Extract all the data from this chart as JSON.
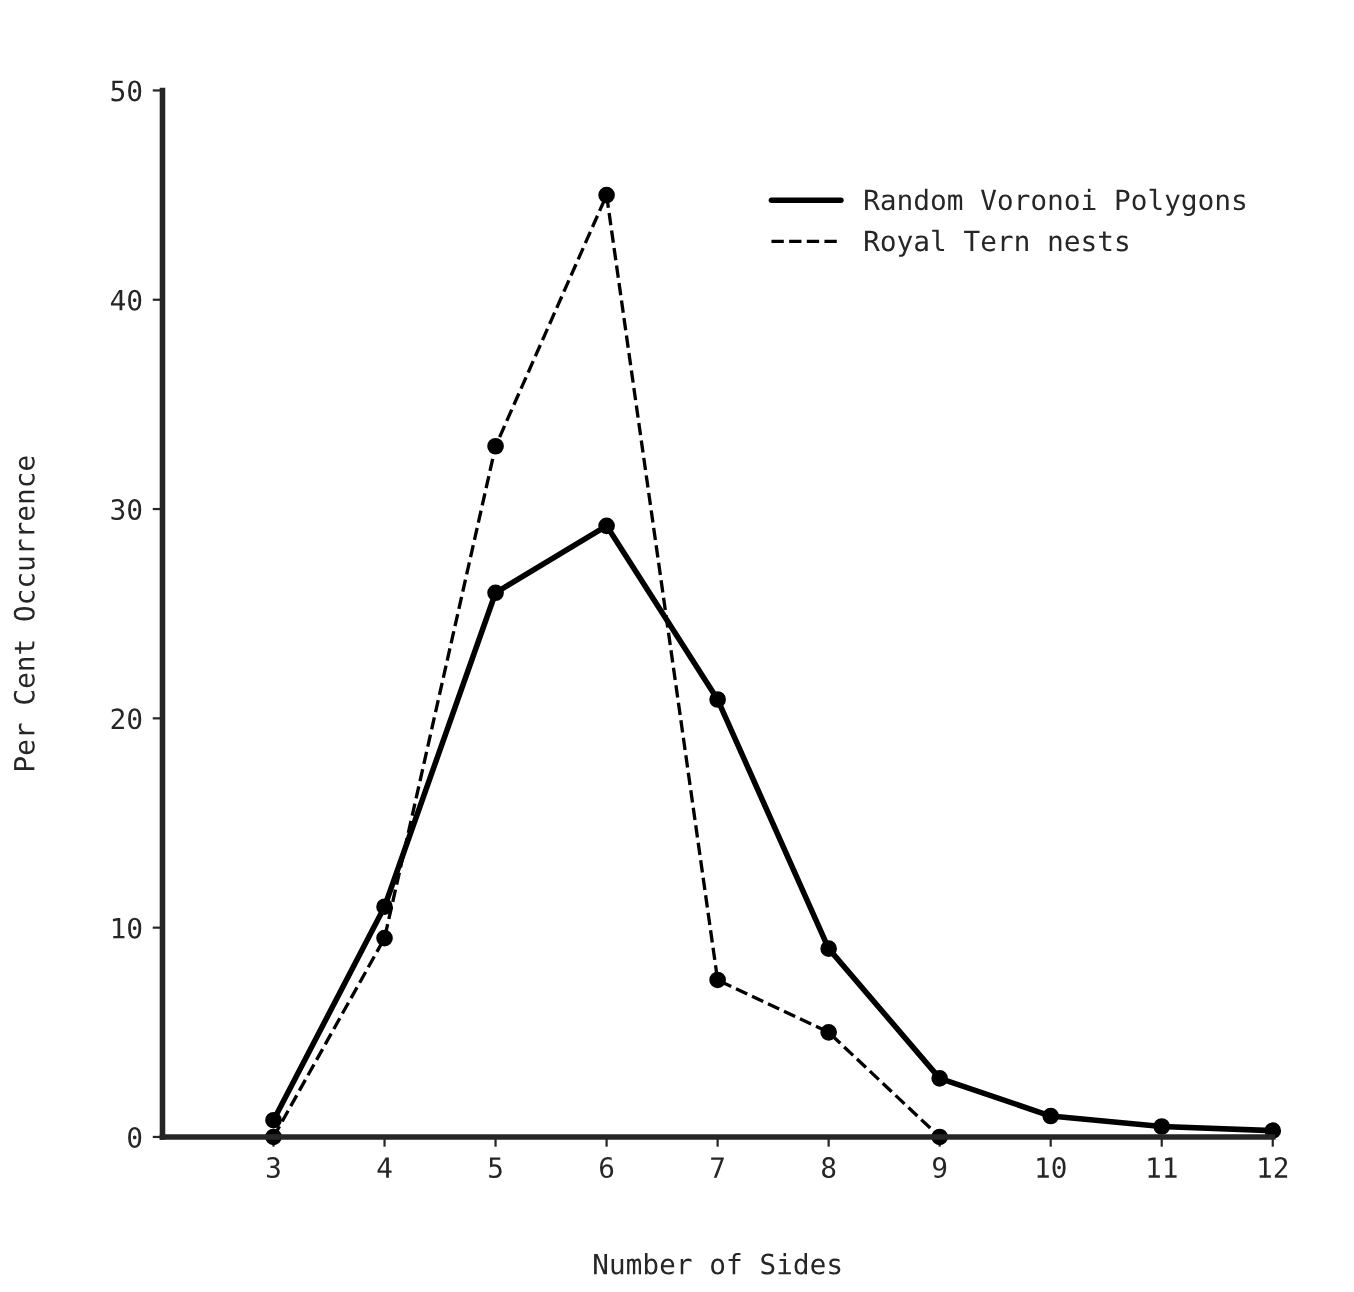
{
  "chart_data": {
    "type": "line",
    "xlabel": "Number of Sides",
    "ylabel": "Per Cent Occurrence",
    "x": [
      3,
      4,
      5,
      6,
      7,
      8,
      9,
      10,
      11,
      12
    ],
    "series": [
      {
        "name": "Random Voronoi Polygons",
        "color": "#000000",
        "line_style": "solid",
        "values": [
          0.8,
          11,
          26,
          29.2,
          20.9,
          9,
          2.8,
          1,
          0.5,
          0.3
        ]
      },
      {
        "name": "Royal Tern nests",
        "color": "#000000",
        "line_style": "dashed",
        "values": [
          0,
          9.5,
          33,
          45,
          7.5,
          5,
          0,
          null,
          null,
          null
        ]
      }
    ],
    "xlim": [
      2,
      12
    ],
    "xticks": [
      3,
      4,
      5,
      6,
      7,
      8,
      9,
      10,
      11,
      12
    ],
    "ylim": [
      0,
      50
    ],
    "yticks": [
      0,
      10,
      20,
      30,
      40,
      50
    ],
    "marker": "circle",
    "grid": false,
    "legend": "top right"
  }
}
